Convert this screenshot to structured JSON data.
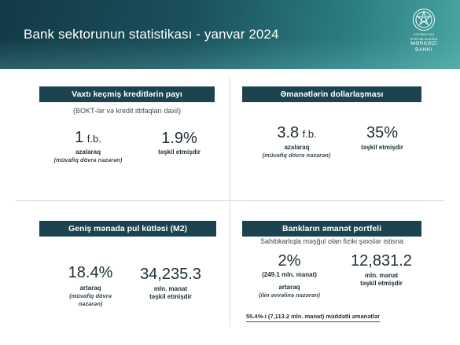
{
  "header": {
    "title": "Bank sektorunun statistikası  - yanvar 2024",
    "logo_small_1": "AZƏRBAYCAN",
    "logo_small_2": "RESPUBLİKASININ",
    "logo_big_1": "MƏRKƏZİ",
    "logo_big_2": "BANKI"
  },
  "panel1": {
    "title": "Vaxtı keçmiş kreditlərin payı",
    "note": "(BOKT-lər və kredit ittifaqları daxil)",
    "stat1_value": "1",
    "stat1_unit": "f.b.",
    "stat1_sub": "azalaraq",
    "stat1_note": "(müvafiq dövrə nəzərən)",
    "stat2_value": "1.9%",
    "stat2_sub": "təşkil etmişdir"
  },
  "panel2": {
    "title": "Əmanətlərin dollarlaşması",
    "stat1_value": "3.8",
    "stat1_unit": "f.b.",
    "stat1_sub": "azalaraq",
    "stat1_note": "(müvafiq dövrə nəzərən)",
    "stat2_value": "35%",
    "stat2_sub": "təşkil etmişdir"
  },
  "panel3": {
    "title": "Geniş mənada pul kütləsi (M2)",
    "stat1_value": "18.4%",
    "stat1_sub": "artaraq",
    "stat1_note_1": "(müvafiq dövrə",
    "stat1_note_2": "nəzərən)",
    "stat2_value": "34,235.3",
    "stat2_sub_1": "mln. manat",
    "stat2_sub_2": "təşkil etmişdir"
  },
  "panel4": {
    "title": "Bankların əmanət portfeli",
    "note": "Sahibkarlıqla məşğul olan fiziki şəxslər istisna",
    "stat1_value": "2%",
    "stat1_detail": "(249.1 mln. manat)",
    "stat1_sub": "artaraq",
    "stat1_note": "(ilin əvvəlinə nəzərən)",
    "stat2_value": "12,831.2",
    "stat2_sub_1": "mln. manat",
    "stat2_sub_2": "təşkil etmişdir",
    "footnote": "55.4%-i (7,113.2 mln. manat) müddətli əmanətlər"
  },
  "colors": {
    "header_dark": "#123a46",
    "header_light": "#4aa5a0",
    "pill": "#1b4350",
    "text": "#1d2d35"
  },
  "icons": [
    "central-bank-emblem-icon"
  ]
}
